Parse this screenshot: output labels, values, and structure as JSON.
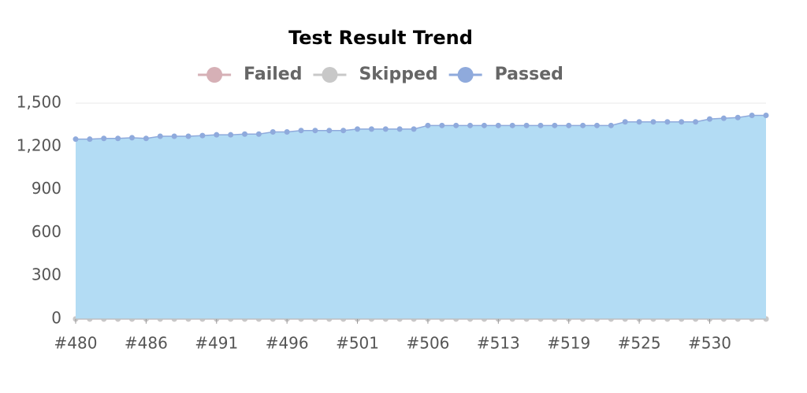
{
  "chart_data": {
    "type": "area",
    "title": "Test Result Trend",
    "categories": [
      "#480",
      null,
      null,
      null,
      null,
      "#486",
      null,
      null,
      null,
      null,
      "#491",
      null,
      null,
      null,
      null,
      "#496",
      null,
      null,
      null,
      null,
      "#501",
      null,
      null,
      null,
      null,
      "#506",
      null,
      null,
      null,
      null,
      "#513",
      null,
      null,
      null,
      null,
      "#519",
      null,
      null,
      null,
      null,
      "#525",
      null,
      null,
      null,
      null,
      "#530",
      null,
      null,
      null,
      null
    ],
    "series": [
      {
        "name": "Failed",
        "color": "#d6b0b6",
        "values": [
          0,
          0,
          0,
          0,
          0,
          0,
          0,
          0,
          0,
          0,
          0,
          0,
          0,
          0,
          0,
          0,
          0,
          0,
          0,
          0,
          0,
          0,
          0,
          0,
          0,
          0,
          0,
          0,
          0,
          0,
          0,
          0,
          0,
          0,
          0,
          0,
          0,
          0,
          0,
          0,
          0,
          0,
          0,
          0,
          0,
          0,
          0,
          0,
          0,
          0
        ]
      },
      {
        "name": "Skipped",
        "color": "#c8c8c8",
        "values": [
          0,
          0,
          0,
          0,
          0,
          0,
          0,
          0,
          0,
          0,
          0,
          0,
          0,
          0,
          0,
          0,
          0,
          0,
          0,
          0,
          0,
          0,
          0,
          0,
          0,
          0,
          0,
          0,
          0,
          0,
          0,
          0,
          0,
          0,
          0,
          0,
          0,
          0,
          0,
          0,
          0,
          0,
          0,
          0,
          0,
          0,
          0,
          0,
          0,
          0
        ]
      },
      {
        "name": "Passed",
        "color": "#8faadc",
        "fill": "#b3dcf4",
        "values": [
          1250,
          1250,
          1255,
          1255,
          1260,
          1255,
          1270,
          1270,
          1270,
          1275,
          1280,
          1280,
          1285,
          1285,
          1300,
          1300,
          1310,
          1310,
          1310,
          1310,
          1320,
          1320,
          1320,
          1320,
          1320,
          1345,
          1345,
          1345,
          1345,
          1345,
          1345,
          1345,
          1345,
          1345,
          1345,
          1345,
          1345,
          1345,
          1345,
          1370,
          1370,
          1370,
          1370,
          1370,
          1370,
          1390,
          1395,
          1400,
          1415,
          1415
        ]
      }
    ],
    "ylim": [
      0,
      1500
    ],
    "yticks": [
      0,
      300,
      600,
      900,
      {
        "value": 1200,
        "label": "1,200"
      },
      {
        "value": 1500,
        "label": "1,500"
      }
    ],
    "grid": true,
    "legend": "top"
  }
}
